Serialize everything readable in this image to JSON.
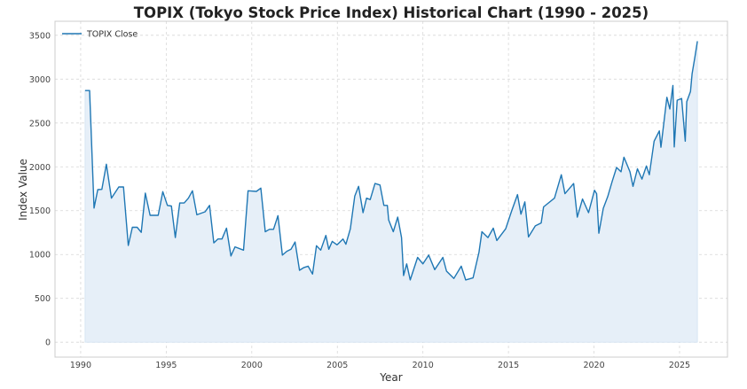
{
  "chart_data": {
    "type": "area",
    "title": "TOPIX (Tokyo Stock Price Index) Historical Chart (1990 - 2025)",
    "xlabel": "Year",
    "ylabel": "Index Value",
    "xlim": [
      1988.5,
      2027.8
    ],
    "ylim": [
      -170,
      3660
    ],
    "xticks": [
      1990,
      1995,
      2000,
      2005,
      2010,
      2015,
      2020,
      2025
    ],
    "yticks": [
      0,
      500,
      1000,
      1500,
      2000,
      2500,
      3000,
      3500
    ],
    "grid": true,
    "legend": {
      "placement": "top-left",
      "entries": [
        "TOPIX Close"
      ]
    },
    "series": [
      {
        "name": "TOPIX Close",
        "color": "#1f77b4",
        "fill": "#e6eff8",
        "points": [
          [
            1990.26,
            2870
          ],
          [
            1990.52,
            2870
          ],
          [
            1990.78,
            1530
          ],
          [
            1991.0,
            1740
          ],
          [
            1991.24,
            1743
          ],
          [
            1991.5,
            2030
          ],
          [
            1991.8,
            1643
          ],
          [
            1992.23,
            1770
          ],
          [
            1992.5,
            1770
          ],
          [
            1992.78,
            1103
          ],
          [
            1993.02,
            1310
          ],
          [
            1993.3,
            1310
          ],
          [
            1993.54,
            1253
          ],
          [
            1993.78,
            1700
          ],
          [
            1994.06,
            1447
          ],
          [
            1994.53,
            1447
          ],
          [
            1994.8,
            1717
          ],
          [
            1995.07,
            1560
          ],
          [
            1995.3,
            1553
          ],
          [
            1995.53,
            1193
          ],
          [
            1995.79,
            1587
          ],
          [
            1996.05,
            1587
          ],
          [
            1996.3,
            1643
          ],
          [
            1996.53,
            1727
          ],
          [
            1996.79,
            1453
          ],
          [
            1997.27,
            1487
          ],
          [
            1997.53,
            1560
          ],
          [
            1997.78,
            1133
          ],
          [
            1998.02,
            1177
          ],
          [
            1998.26,
            1177
          ],
          [
            1998.52,
            1300
          ],
          [
            1998.78,
            983
          ],
          [
            1999.02,
            1087
          ],
          [
            1999.52,
            1050
          ],
          [
            1999.78,
            1727
          ],
          [
            2000.27,
            1720
          ],
          [
            2000.53,
            1757
          ],
          [
            2000.79,
            1260
          ],
          [
            2001.03,
            1287
          ],
          [
            2001.27,
            1287
          ],
          [
            2001.53,
            1443
          ],
          [
            2001.79,
            993
          ],
          [
            2002.05,
            1037
          ],
          [
            2002.29,
            1060
          ],
          [
            2002.53,
            1143
          ],
          [
            2002.79,
            820
          ],
          [
            2003.03,
            850
          ],
          [
            2003.29,
            867
          ],
          [
            2003.55,
            777
          ],
          [
            2003.78,
            1100
          ],
          [
            2004.03,
            1050
          ],
          [
            2004.33,
            1217
          ],
          [
            2004.5,
            1060
          ],
          [
            2004.7,
            1150
          ],
          [
            2004.98,
            1110
          ],
          [
            2005.33,
            1177
          ],
          [
            2005.5,
            1117
          ],
          [
            2005.76,
            1293
          ],
          [
            2006.02,
            1667
          ],
          [
            2006.24,
            1777
          ],
          [
            2006.5,
            1477
          ],
          [
            2006.71,
            1643
          ],
          [
            2006.92,
            1627
          ],
          [
            2007.2,
            1810
          ],
          [
            2007.49,
            1793
          ],
          [
            2007.72,
            1560
          ],
          [
            2007.92,
            1560
          ],
          [
            2008.0,
            1393
          ],
          [
            2008.27,
            1260
          ],
          [
            2008.53,
            1427
          ],
          [
            2008.75,
            1193
          ],
          [
            2008.87,
            760
          ],
          [
            2009.05,
            893
          ],
          [
            2009.26,
            710
          ],
          [
            2009.69,
            967
          ],
          [
            2010.0,
            893
          ],
          [
            2010.34,
            993
          ],
          [
            2010.69,
            827
          ],
          [
            2011.17,
            967
          ],
          [
            2011.38,
            810
          ],
          [
            2011.81,
            727
          ],
          [
            2012.24,
            867
          ],
          [
            2012.5,
            710
          ],
          [
            2012.93,
            733
          ],
          [
            2013.28,
            1027
          ],
          [
            2013.45,
            1260
          ],
          [
            2013.8,
            1193
          ],
          [
            2014.11,
            1300
          ],
          [
            2014.32,
            1160
          ],
          [
            2014.84,
            1293
          ],
          [
            2015.18,
            1493
          ],
          [
            2015.53,
            1683
          ],
          [
            2015.73,
            1460
          ],
          [
            2015.96,
            1600
          ],
          [
            2016.17,
            1200
          ],
          [
            2016.57,
            1327
          ],
          [
            2016.91,
            1360
          ],
          [
            2017.05,
            1543
          ],
          [
            2017.69,
            1643
          ],
          [
            2018.09,
            1910
          ],
          [
            2018.3,
            1693
          ],
          [
            2018.81,
            1810
          ],
          [
            2019.02,
            1427
          ],
          [
            2019.33,
            1633
          ],
          [
            2019.68,
            1477
          ],
          [
            2020.03,
            1733
          ],
          [
            2020.15,
            1693
          ],
          [
            2020.28,
            1243
          ],
          [
            2020.54,
            1527
          ],
          [
            2020.8,
            1660
          ],
          [
            2021.06,
            1833
          ],
          [
            2021.32,
            1993
          ],
          [
            2021.58,
            1943
          ],
          [
            2021.75,
            2110
          ],
          [
            2022.1,
            1943
          ],
          [
            2022.28,
            1777
          ],
          [
            2022.54,
            1977
          ],
          [
            2022.8,
            1860
          ],
          [
            2023.06,
            2010
          ],
          [
            2023.23,
            1910
          ],
          [
            2023.51,
            2293
          ],
          [
            2023.82,
            2410
          ],
          [
            2023.91,
            2223
          ],
          [
            2024.26,
            2793
          ],
          [
            2024.43,
            2660
          ],
          [
            2024.61,
            2927
          ],
          [
            2024.69,
            2227
          ],
          [
            2024.86,
            2760
          ],
          [
            2025.12,
            2780
          ],
          [
            2025.33,
            2293
          ],
          [
            2025.42,
            2743
          ],
          [
            2025.64,
            2860
          ],
          [
            2025.73,
            3060
          ],
          [
            2025.9,
            3260
          ],
          [
            2026.04,
            3433
          ]
        ]
      }
    ]
  }
}
